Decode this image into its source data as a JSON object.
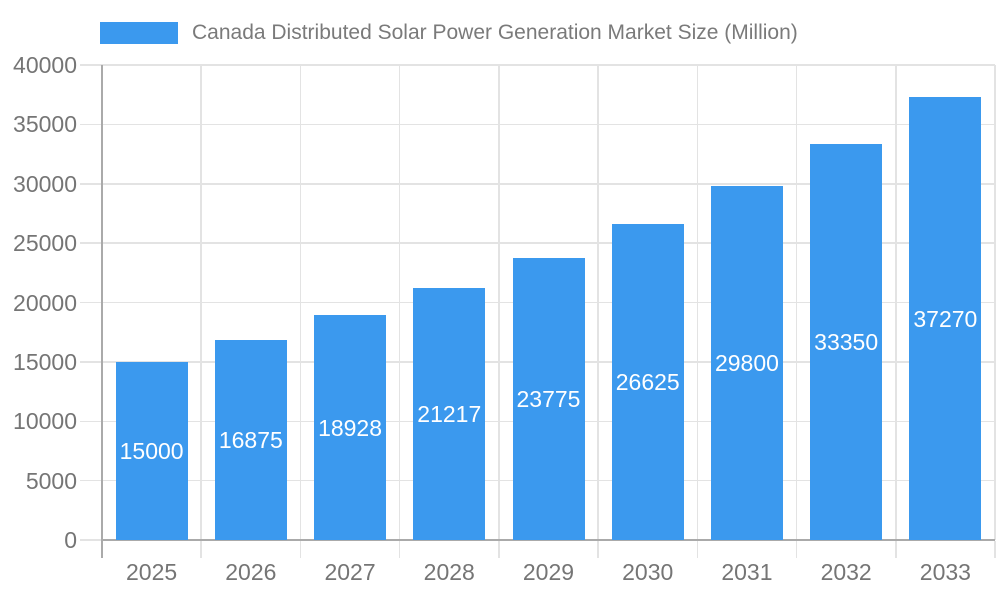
{
  "chart_data": {
    "type": "bar",
    "title": "Canada Distributed Solar Power Generation Market Size (Million)",
    "categories": [
      "2025",
      "2026",
      "2027",
      "2028",
      "2029",
      "2030",
      "2031",
      "2032",
      "2033"
    ],
    "values": [
      15000,
      16875,
      18928,
      21217,
      23775,
      26625,
      29800,
      33350,
      37270
    ],
    "xlabel": "",
    "ylabel": "",
    "ylim": [
      0,
      40000
    ],
    "ytick_step": 5000,
    "ytick_labels": [
      "0",
      "5000",
      "10000",
      "15000",
      "20000",
      "25000",
      "30000",
      "35000",
      "40000"
    ],
    "grid": true,
    "legend_position": "top-left",
    "colors": {
      "bar": "#3b99ee",
      "bar_value_label": "#ffffff",
      "axis_line": "#aaaaaa",
      "grid_line": "#e3e3e3",
      "tick_label": "#757575",
      "legend_text": "#7a7a7a",
      "background": "#ffffff"
    }
  }
}
